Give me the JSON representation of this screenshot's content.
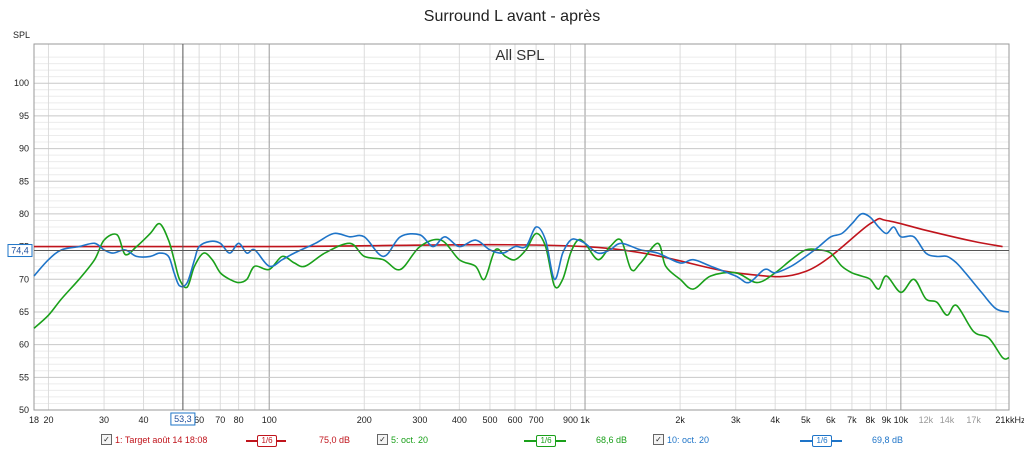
{
  "title": "Surround L avant - après",
  "chart_data": {
    "type": "line",
    "panel_label": "All SPL",
    "ylabel": "SPL",
    "xunit": "kHz",
    "xscale": "log",
    "xlim": [
      18,
      22000
    ],
    "ylim": [
      50,
      106
    ],
    "grid": true,
    "yticks": [
      50,
      55,
      60,
      65,
      70,
      75,
      80,
      85,
      90,
      95,
      100
    ],
    "xticks": [
      {
        "v": 18,
        "label": "18"
      },
      {
        "v": 20,
        "label": "20"
      },
      {
        "v": 30,
        "label": "30"
      },
      {
        "v": 40,
        "label": "40"
      },
      {
        "v": 60,
        "label": "60"
      },
      {
        "v": 70,
        "label": "70"
      },
      {
        "v": 80,
        "label": "80"
      },
      {
        "v": 100,
        "label": "100"
      },
      {
        "v": 200,
        "label": "200"
      },
      {
        "v": 300,
        "label": "300"
      },
      {
        "v": 400,
        "label": "400"
      },
      {
        "v": 500,
        "label": "500"
      },
      {
        "v": 600,
        "label": "600"
      },
      {
        "v": 700,
        "label": "700"
      },
      {
        "v": 900,
        "label": "900"
      },
      {
        "v": 1000,
        "label": "1k"
      },
      {
        "v": 2000,
        "label": "2k"
      },
      {
        "v": 3000,
        "label": "3k"
      },
      {
        "v": 4000,
        "label": "4k"
      },
      {
        "v": 5000,
        "label": "5k"
      },
      {
        "v": 6000,
        "label": "6k"
      },
      {
        "v": 7000,
        "label": "7k"
      },
      {
        "v": 8000,
        "label": "8k"
      },
      {
        "v": 9000,
        "label": "9k"
      },
      {
        "v": 10000,
        "label": "10k"
      },
      {
        "v": 12000,
        "label": "12k"
      },
      {
        "v": 14000,
        "label": "14k"
      },
      {
        "v": 17000,
        "label": "17k"
      },
      {
        "v": 21000,
        "label": "21k"
      }
    ],
    "cursor": {
      "x": 53.3,
      "x_label": "53,3",
      "y": 74.4,
      "y_label": "74,4"
    },
    "series": [
      {
        "name": "1: Target août 14 18:08",
        "color": "#c0141c",
        "smoothing": "1/6",
        "level": "75,0 dB",
        "x": [
          18,
          100,
          1000,
          3000,
          5000,
          8000,
          9000,
          12000,
          17000,
          21000
        ],
        "y": [
          75,
          75,
          75,
          71,
          71.2,
          78.5,
          79,
          77.5,
          75.8,
          75
        ]
      },
      {
        "name": "5: oct. 20",
        "color": "#1aa01a",
        "smoothing": "1/6",
        "level": "68,6 dB",
        "x": [
          18,
          20,
          22,
          25,
          28,
          30,
          33,
          35,
          38,
          42,
          45,
          48,
          50,
          52,
          55,
          58,
          62,
          66,
          70,
          75,
          80,
          85,
          90,
          100,
          110,
          120,
          130,
          150,
          180,
          200,
          230,
          260,
          300,
          350,
          400,
          450,
          480,
          520,
          560,
          600,
          650,
          700,
          750,
          800,
          850,
          900,
          950,
          1000,
          1100,
          1200,
          1300,
          1400,
          1500,
          1700,
          1800,
          2000,
          2200,
          2500,
          3000,
          3500,
          4000,
          4500,
          5000,
          5500,
          6000,
          6500,
          7000,
          7500,
          8000,
          8500,
          9000,
          10000,
          11000,
          12000,
          13000,
          14000,
          15000,
          17000,
          19000,
          21000,
          22000
        ],
        "y": [
          62.5,
          64.5,
          67,
          70,
          73,
          76,
          76.8,
          73.8,
          75,
          77,
          78.5,
          76,
          73,
          70,
          68.8,
          72,
          74,
          73,
          71,
          70,
          69.5,
          70,
          72,
          71.5,
          73.5,
          72.5,
          72,
          74,
          75.5,
          73.5,
          73,
          71.5,
          75,
          76,
          73,
          72,
          70,
          74.5,
          73.5,
          73,
          74.5,
          77,
          75,
          69,
          70,
          74,
          76,
          75.5,
          73,
          75,
          76,
          71.5,
          72.5,
          75.5,
          72,
          70,
          68.5,
          70.5,
          71,
          69.5,
          71,
          73,
          74.5,
          74.5,
          74,
          72,
          71,
          70.5,
          70,
          68.5,
          70.5,
          68,
          70,
          67,
          66.5,
          64.5,
          66,
          62,
          61,
          58,
          58
        ]
      },
      {
        "name": "10: oct. 20",
        "color": "#1e74c8",
        "smoothing": "1/6",
        "level": "69,8 dB",
        "x": [
          18,
          20,
          22,
          25,
          28,
          30,
          32,
          35,
          38,
          42,
          45,
          48,
          50,
          52,
          55,
          58,
          60,
          65,
          70,
          75,
          80,
          85,
          90,
          100,
          110,
          120,
          140,
          160,
          180,
          200,
          230,
          260,
          300,
          330,
          360,
          400,
          450,
          500,
          550,
          600,
          650,
          700,
          750,
          800,
          850,
          900,
          950,
          1000,
          1100,
          1200,
          1300,
          1500,
          1700,
          2000,
          2200,
          2500,
          3000,
          3300,
          3700,
          4000,
          4500,
          5000,
          5500,
          6000,
          6500,
          7000,
          7500,
          8000,
          8500,
          9000,
          9500,
          10000,
          11000,
          12000,
          13000,
          14000,
          15000,
          16000,
          18000,
          20000,
          22000
        ],
        "y": [
          70.5,
          73,
          74.5,
          75,
          75.5,
          74.5,
          74,
          74.5,
          73.5,
          73.5,
          74,
          73.5,
          71,
          69,
          69.5,
          73,
          75,
          75.8,
          75.5,
          74,
          75.5,
          74,
          74.5,
          72,
          73,
          74,
          75.5,
          77,
          76.5,
          76.5,
          73.5,
          76.5,
          76.8,
          75,
          76.5,
          75,
          76,
          74.5,
          74,
          75,
          75,
          78,
          76,
          70,
          74,
          76,
          76,
          75.5,
          74,
          74.5,
          75.5,
          74.5,
          74,
          72.5,
          73,
          72,
          70.5,
          69.5,
          71.5,
          71,
          72,
          73.5,
          75,
          76.5,
          77,
          78.5,
          80,
          79.5,
          78,
          77,
          78,
          76.5,
          76.5,
          74,
          73.5,
          73.5,
          72.5,
          71,
          68,
          65.5,
          65
        ]
      }
    ]
  }
}
